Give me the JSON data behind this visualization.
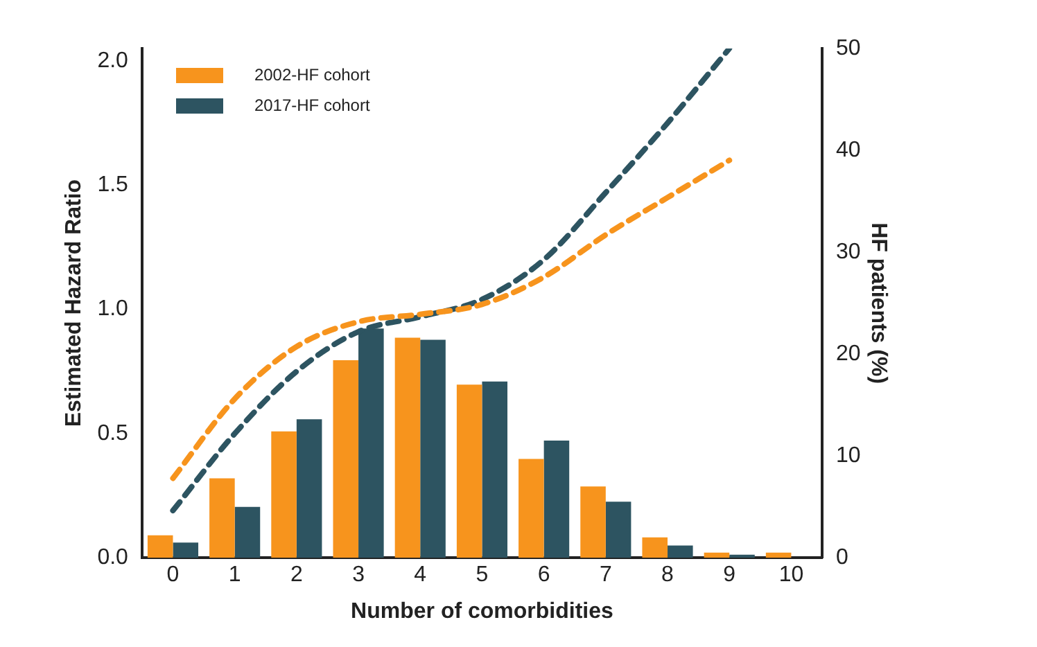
{
  "chart_data": {
    "type": "bar",
    "xlabel": "Number of comorbidities",
    "ylabel": "Estimated Hazard Ratio",
    "y2label": "HF patients (%)",
    "categories": [
      "0",
      "1",
      "2",
      "3",
      "4",
      "5",
      "6",
      "7",
      "8",
      "9",
      "10"
    ],
    "series": [
      {
        "name": "2002-HF cohort",
        "axis": "y2",
        "color": "#f7941d",
        "values": [
          2.2,
          7.8,
          12.4,
          19.4,
          21.6,
          17,
          9.7,
          7,
          2,
          0.5,
          0.5
        ]
      },
      {
        "name": "2017-HF cohort",
        "axis": "y2",
        "color": "#2d5461",
        "values": [
          1.5,
          5,
          13.6,
          22.5,
          21.4,
          17.3,
          11.5,
          5.5,
          1.2,
          0.3,
          0
        ]
      },
      {
        "type": "line",
        "axis": "y",
        "color": "#f7941d",
        "line_style": "dashed",
        "values": [
          0.32,
          0.64,
          0.85,
          0.95,
          0.98,
          1.02,
          1.13,
          1.3,
          1.45,
          1.6,
          null
        ]
      },
      {
        "type": "line",
        "axis": "y",
        "color": "#2d5461",
        "line_style": "dashed",
        "values": [
          0.19,
          0.5,
          0.75,
          0.91,
          0.97,
          1.04,
          1.2,
          1.47,
          1.75,
          2.05,
          null
        ]
      }
    ],
    "ylim": [
      0,
      2.05
    ],
    "yticks": [
      {
        "value": 0,
        "label": "0.0"
      },
      {
        "value": 0.5,
        "label": "0.5"
      },
      {
        "value": 1,
        "label": "1.0"
      },
      {
        "value": 1.5,
        "label": "1.5"
      },
      {
        "value": 2,
        "label": "2.0"
      }
    ],
    "y2lim": [
      0,
      50
    ],
    "y2ticks": [
      0,
      10,
      20,
      30,
      40,
      50
    ],
    "grid": false,
    "legend": "top left",
    "marker": "none"
  }
}
